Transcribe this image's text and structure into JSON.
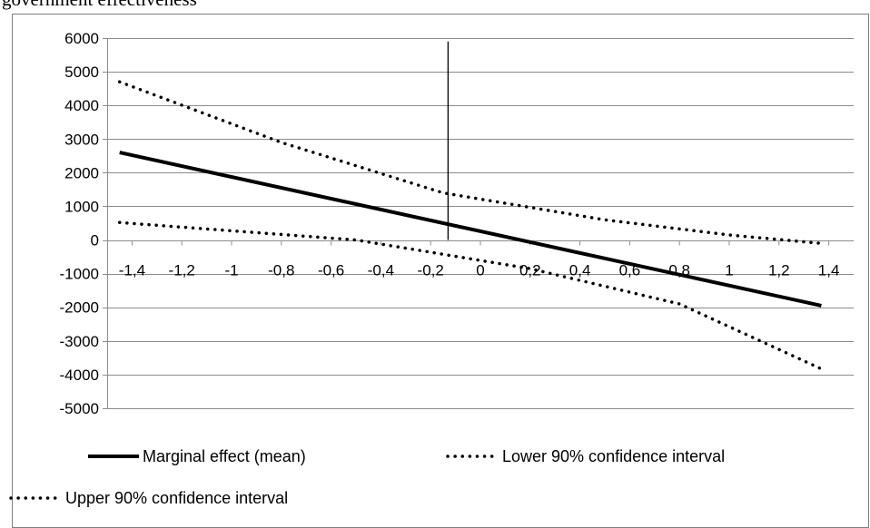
{
  "caption": "government effectiveness",
  "chart_data": {
    "type": "line",
    "title": "",
    "xlabel": "",
    "ylabel": "",
    "xlim": [
      -1.5,
      1.5
    ],
    "ylim": [
      -5000,
      6000
    ],
    "y_ticks": [
      6000,
      5000,
      4000,
      3000,
      2000,
      1000,
      0,
      -1000,
      -2000,
      -3000,
      -4000,
      -5000
    ],
    "x_ticks": [
      "-1,4",
      "-1,2",
      "-1",
      "-0,8",
      "-0,6",
      "-0,4",
      "-0,2",
      "0",
      "0,2",
      "0,4",
      "0,6",
      "0,8",
      "1",
      "1,2",
      "1,4"
    ],
    "x_tick_values": [
      -1.4,
      -1.2,
      -1,
      -0.8,
      -0.6,
      -0.4,
      -0.2,
      0,
      0.2,
      0.4,
      0.6,
      0.8,
      1,
      1.2,
      1.4
    ],
    "grid": "horizontal",
    "legend_position": "bottom",
    "reference_line": {
      "x": -0.13,
      "y_range": [
        0,
        5900
      ]
    },
    "series": [
      {
        "name": "Marginal effect (mean)",
        "style": "solid",
        "x": [
          -1.45,
          1.37
        ],
        "y": [
          2600,
          -1950
        ]
      },
      {
        "name": "Lower 90% confidence interval",
        "style": "dotted",
        "x": [
          -1.45,
          -0.5,
          0.2,
          0.8,
          1.37
        ],
        "y": [
          520,
          0,
          -850,
          -1900,
          -3830
        ]
      },
      {
        "name": "Upper 90% confidence interval",
        "style": "dotted",
        "x": [
          -1.45,
          -0.8,
          -0.15,
          0.5,
          1.0,
          1.37
        ],
        "y": [
          4700,
          2900,
          1400,
          600,
          150,
          -100
        ]
      }
    ]
  }
}
